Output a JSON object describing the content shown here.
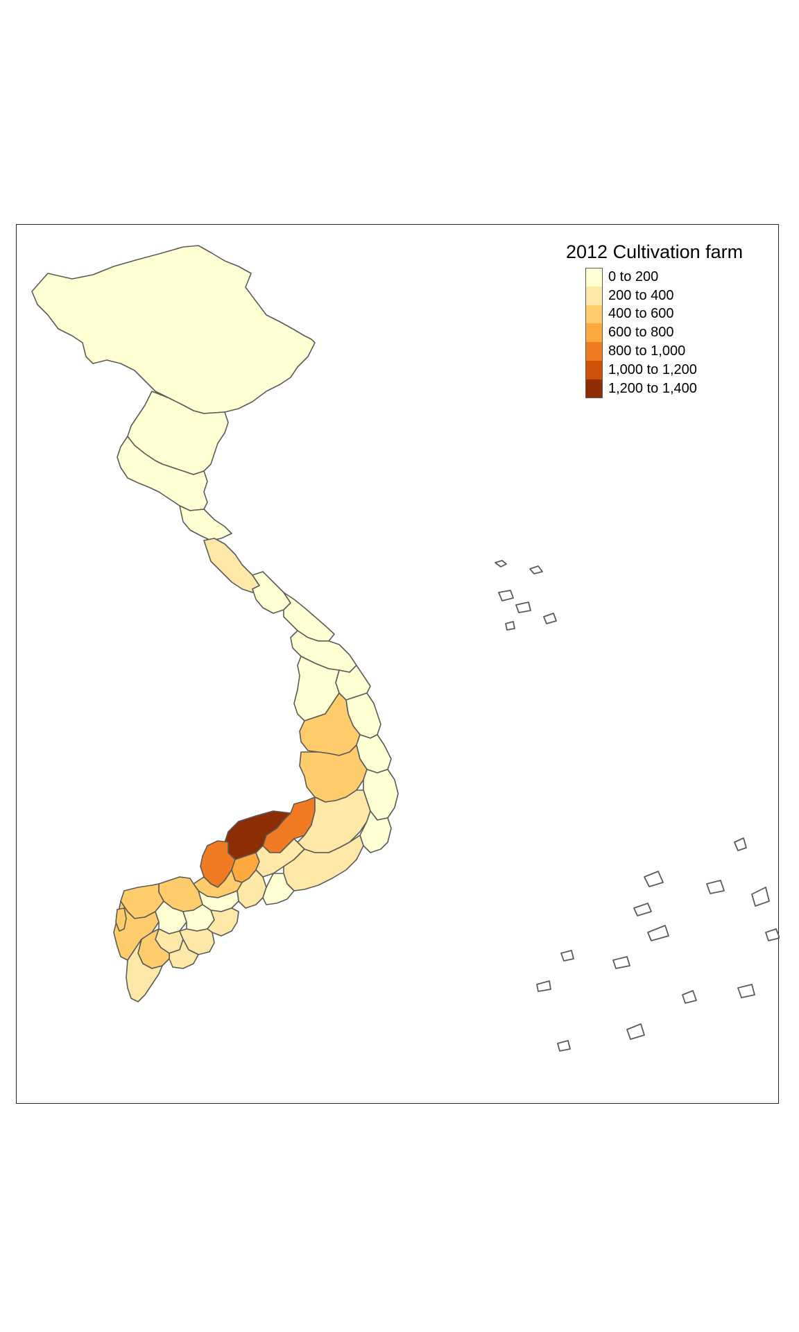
{
  "legend": {
    "title": "2012 Cultivation farm",
    "classes": [
      {
        "label": "0 to 200",
        "color": "#ffffd4"
      },
      {
        "label": "200 to 400",
        "color": "#fee8a8"
      },
      {
        "label": "400 to 600",
        "color": "#fecc6b"
      },
      {
        "label": "600 to 800",
        "color": "#fea93e"
      },
      {
        "label": "800 to 1,000",
        "color": "#f07b22"
      },
      {
        "label": "1,000 to 1,200",
        "color": "#cf5108"
      },
      {
        "label": "1,200 to 1,400",
        "color": "#8c2d04"
      }
    ]
  },
  "style": {
    "border_color": "#5a5a5a",
    "background": "#ffffff"
  }
}
